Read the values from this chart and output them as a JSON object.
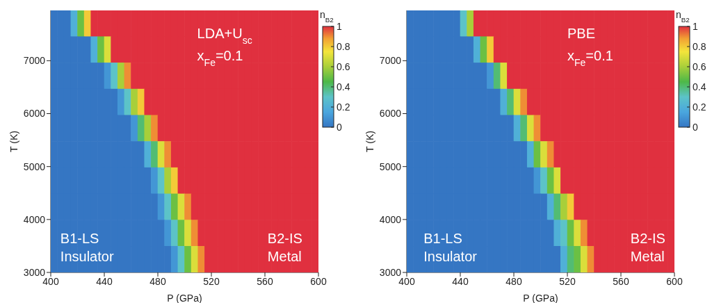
{
  "chart_data": [
    {
      "type": "heatmap",
      "xlabel": "P (GPa)",
      "ylabel": "T (K)",
      "clabel": "n$_{B2}$",
      "annotations": [
        "LDA+U$_{sc}$",
        "x$_{Fe}$=0.1",
        "B1-LS\nInsulator",
        "B2-IS\nMetal"
      ],
      "x": [
        402.5,
        407.5,
        412.5,
        417.5,
        422.5,
        427.5,
        432.5,
        437.5,
        442.5,
        447.5,
        452.5,
        457.5,
        462.5,
        467.5,
        472.5,
        477.5,
        482.5,
        487.5,
        492.5,
        497.5,
        502.5,
        507.5,
        512.5,
        517.5,
        522.5,
        527.5,
        532.5,
        537.5,
        542.5,
        547.5,
        552.5,
        557.5,
        562.5,
        567.5,
        572.5,
        577.5,
        582.5,
        587.5,
        592.5,
        597.5
      ],
      "y": [
        7702.5,
        7207.5,
        6712.5,
        6217.5,
        5722.5,
        5227.5,
        4732.5,
        4237.5,
        3742.5,
        3247.5
      ],
      "cells": [
        [
          0,
          0,
          0,
          0.2,
          0.5,
          0.8,
          1,
          1,
          1,
          1,
          1,
          1,
          1,
          1,
          1,
          1,
          1,
          1,
          1,
          1,
          1,
          1,
          1,
          1,
          1,
          1,
          1,
          1,
          1,
          1,
          1,
          1,
          1,
          1,
          1,
          1,
          1,
          1,
          1,
          1
        ],
        [
          0,
          0,
          0,
          0,
          0,
          0,
          0.2,
          0.5,
          0.7,
          1,
          1,
          1,
          1,
          1,
          1,
          1,
          1,
          1,
          1,
          1,
          1,
          1,
          1,
          1,
          1,
          1,
          1,
          1,
          1,
          1,
          1,
          1,
          1,
          1,
          1,
          1,
          1,
          1,
          1,
          1
        ],
        [
          0,
          0,
          0,
          0,
          0,
          0,
          0,
          0,
          0.1,
          0.3,
          0.6,
          0.9,
          1,
          1,
          1,
          1,
          1,
          1,
          1,
          1,
          1,
          1,
          1,
          1,
          1,
          1,
          1,
          1,
          1,
          1,
          1,
          1,
          1,
          1,
          1,
          1,
          1,
          1,
          1,
          1
        ],
        [
          0,
          0,
          0,
          0,
          0,
          0,
          0,
          0,
          0,
          0,
          0.1,
          0.3,
          0.6,
          0.8,
          1,
          1,
          1,
          1,
          1,
          1,
          1,
          1,
          1,
          1,
          1,
          1,
          1,
          1,
          1,
          1,
          1,
          1,
          1,
          1,
          1,
          1,
          1,
          1,
          1,
          1
        ],
        [
          0,
          0,
          0,
          0,
          0,
          0,
          0,
          0,
          0,
          0,
          0,
          0,
          0.1,
          0.4,
          0.6,
          0.9,
          1,
          1,
          1,
          1,
          1,
          1,
          1,
          1,
          1,
          1,
          1,
          1,
          1,
          1,
          1,
          1,
          1,
          1,
          1,
          1,
          1,
          1,
          1,
          1
        ],
        [
          0,
          0,
          0,
          0,
          0,
          0,
          0,
          0,
          0,
          0,
          0,
          0,
          0,
          0,
          0.2,
          0.4,
          0.7,
          0.9,
          1,
          1,
          1,
          1,
          1,
          1,
          1,
          1,
          1,
          1,
          1,
          1,
          1,
          1,
          1,
          1,
          1,
          1,
          1,
          1,
          1,
          1
        ],
        [
          0,
          0,
          0,
          0,
          0,
          0,
          0,
          0,
          0,
          0,
          0,
          0,
          0,
          0,
          0,
          0.1,
          0.3,
          0.6,
          0.8,
          1,
          1,
          1,
          1,
          1,
          1,
          1,
          1,
          1,
          1,
          1,
          1,
          1,
          1,
          1,
          1,
          1,
          1,
          1,
          1,
          1
        ],
        [
          0,
          0,
          0,
          0,
          0,
          0,
          0,
          0,
          0,
          0,
          0,
          0,
          0,
          0,
          0,
          0,
          0.1,
          0.3,
          0.5,
          0.7,
          0.9,
          1,
          1,
          1,
          1,
          1,
          1,
          1,
          1,
          1,
          1,
          1,
          1,
          1,
          1,
          1,
          1,
          1,
          1,
          1
        ],
        [
          0,
          0,
          0,
          0,
          0,
          0,
          0,
          0,
          0,
          0,
          0,
          0,
          0,
          0,
          0,
          0,
          0,
          0.1,
          0.3,
          0.5,
          0.7,
          0.9,
          1,
          1,
          1,
          1,
          1,
          1,
          1,
          1,
          1,
          1,
          1,
          1,
          1,
          1,
          1,
          1,
          1,
          1
        ],
        [
          0,
          0,
          0,
          0,
          0,
          0,
          0,
          0,
          0,
          0,
          0,
          0,
          0,
          0,
          0,
          0,
          0,
          0,
          0.1,
          0.3,
          0.5,
          0.7,
          0.9,
          1,
          1,
          1,
          1,
          1,
          1,
          1,
          1,
          1,
          1,
          1,
          1,
          1,
          1,
          1,
          1,
          1
        ]
      ],
      "xlim": [
        400,
        600
      ],
      "xticks": [
        400,
        440,
        480,
        520,
        560,
        600
      ],
      "ylim": [
        3000,
        7950
      ],
      "yticks": [
        3000,
        4000,
        5000,
        6000,
        7000
      ],
      "clim": [
        0,
        1
      ],
      "cticks": [
        0,
        0.2,
        0.4,
        0.6,
        0.8,
        1
      ]
    },
    {
      "type": "heatmap",
      "xlabel": "P (GPa)",
      "ylabel": "T (K)",
      "clabel": "n$_{B2}$",
      "annotations": [
        "PBE",
        "x$_{Fe}$=0.1",
        "B1-LS\nInsulator",
        "B2-IS\nMetal"
      ],
      "x": [
        402.5,
        407.5,
        412.5,
        417.5,
        422.5,
        427.5,
        432.5,
        437.5,
        442.5,
        447.5,
        452.5,
        457.5,
        462.5,
        467.5,
        472.5,
        477.5,
        482.5,
        487.5,
        492.5,
        497.5,
        502.5,
        507.5,
        512.5,
        517.5,
        522.5,
        527.5,
        532.5,
        537.5,
        542.5,
        547.5,
        552.5,
        557.5,
        562.5,
        567.5,
        572.5,
        577.5,
        582.5,
        587.5,
        592.5,
        597.5
      ],
      "y": [
        7702.5,
        7207.5,
        6712.5,
        6217.5,
        5722.5,
        5227.5,
        4732.5,
        4237.5,
        3742.5,
        3247.5
      ],
      "cells": [
        [
          0,
          0,
          0,
          0,
          0,
          0,
          0,
          0,
          0.3,
          0.6,
          1,
          1,
          1,
          1,
          1,
          1,
          1,
          1,
          1,
          1,
          1,
          1,
          1,
          1,
          1,
          1,
          1,
          1,
          1,
          1,
          1,
          1,
          1,
          1,
          1,
          1,
          1,
          1,
          1,
          1
        ],
        [
          0,
          0,
          0,
          0,
          0,
          0,
          0,
          0,
          0,
          0,
          0.2,
          0.5,
          0.8,
          1,
          1,
          1,
          1,
          1,
          1,
          1,
          1,
          1,
          1,
          1,
          1,
          1,
          1,
          1,
          1,
          1,
          1,
          1,
          1,
          1,
          1,
          1,
          1,
          1,
          1,
          1
        ],
        [
          0,
          0,
          0,
          0,
          0,
          0,
          0,
          0,
          0,
          0,
          0,
          0,
          0.1,
          0.4,
          0.7,
          1,
          1,
          1,
          1,
          1,
          1,
          1,
          1,
          1,
          1,
          1,
          1,
          1,
          1,
          1,
          1,
          1,
          1,
          1,
          1,
          1,
          1,
          1,
          1,
          1
        ],
        [
          0,
          0,
          0,
          0,
          0,
          0,
          0,
          0,
          0,
          0,
          0,
          0,
          0,
          0,
          0.2,
          0.4,
          0.7,
          0.9,
          1,
          1,
          1,
          1,
          1,
          1,
          1,
          1,
          1,
          1,
          1,
          1,
          1,
          1,
          1,
          1,
          1,
          1,
          1,
          1,
          1,
          1
        ],
        [
          0,
          0,
          0,
          0,
          0,
          0,
          0,
          0,
          0,
          0,
          0,
          0,
          0,
          0,
          0,
          0,
          0.2,
          0.4,
          0.7,
          0.9,
          1,
          1,
          1,
          1,
          1,
          1,
          1,
          1,
          1,
          1,
          1,
          1,
          1,
          1,
          1,
          1,
          1,
          1,
          1,
          1
        ],
        [
          0,
          0,
          0,
          0,
          0,
          0,
          0,
          0,
          0,
          0,
          0,
          0,
          0,
          0,
          0,
          0,
          0,
          0,
          0.2,
          0.5,
          0.7,
          0.9,
          1,
          1,
          1,
          1,
          1,
          1,
          1,
          1,
          1,
          1,
          1,
          1,
          1,
          1,
          1,
          1,
          1,
          1
        ],
        [
          0,
          0,
          0,
          0,
          0,
          0,
          0,
          0,
          0,
          0,
          0,
          0,
          0,
          0,
          0,
          0,
          0,
          0,
          0,
          0.1,
          0.3,
          0.5,
          0.7,
          1,
          1,
          1,
          1,
          1,
          1,
          1,
          1,
          1,
          1,
          1,
          1,
          1,
          1,
          1,
          1,
          1
        ],
        [
          0,
          0,
          0,
          0,
          0,
          0,
          0,
          0,
          0,
          0,
          0,
          0,
          0,
          0,
          0,
          0,
          0,
          0,
          0,
          0,
          0,
          0.2,
          0.4,
          0.6,
          0.8,
          1,
          1,
          1,
          1,
          1,
          1,
          1,
          1,
          1,
          1,
          1,
          1,
          1,
          1,
          1
        ],
        [
          0,
          0,
          0,
          0,
          0,
          0,
          0,
          0,
          0,
          0,
          0,
          0,
          0,
          0,
          0,
          0,
          0,
          0,
          0,
          0,
          0,
          0,
          0.2,
          0.3,
          0.5,
          0.7,
          0.9,
          1,
          1,
          1,
          1,
          1,
          1,
          1,
          1,
          1,
          1,
          1,
          1,
          1
        ],
        [
          0,
          0,
          0,
          0,
          0,
          0,
          0,
          0,
          0,
          0,
          0,
          0,
          0,
          0,
          0,
          0,
          0,
          0,
          0,
          0,
          0,
          0,
          0,
          0.2,
          0.4,
          0.5,
          0.7,
          0.9,
          1,
          1,
          1,
          1,
          1,
          1,
          1,
          1,
          1,
          1,
          1,
          1
        ]
      ],
      "xlim": [
        400,
        600
      ],
      "xticks": [
        400,
        440,
        480,
        520,
        560,
        600
      ],
      "ylim": [
        3000,
        7950
      ],
      "yticks": [
        3000,
        4000,
        5000,
        6000,
        7000
      ],
      "clim": [
        0,
        1
      ],
      "cticks": [
        0,
        0.2,
        0.4,
        0.6,
        0.8,
        1
      ]
    }
  ]
}
